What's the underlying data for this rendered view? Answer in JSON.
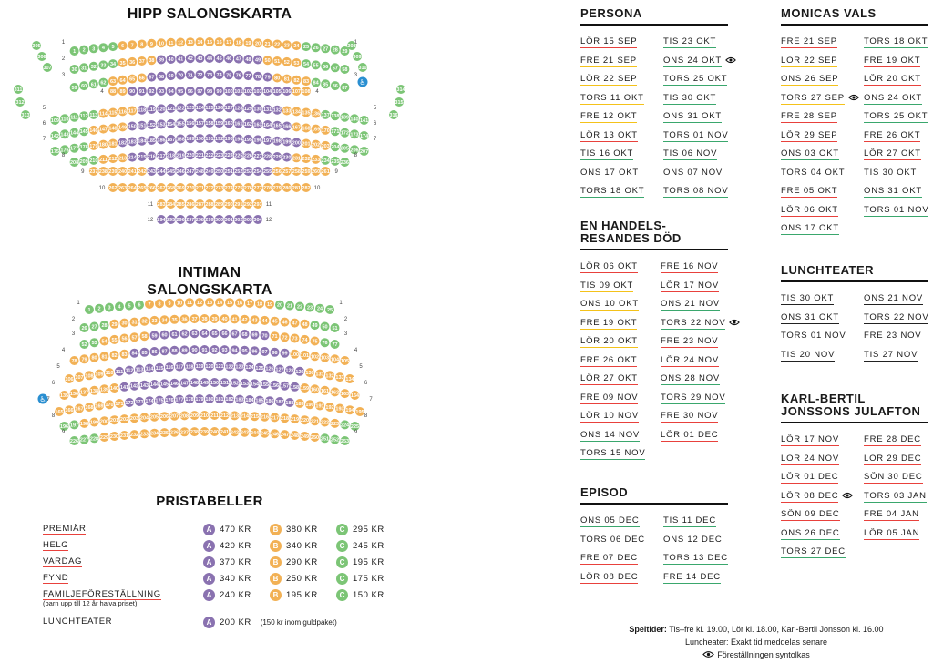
{
  "colors": {
    "green": "#7cc576",
    "orange": "#f2b155",
    "purple": "#8a72b0",
    "wheelchair": "#2a8fd1",
    "underline": {
      "red": "#e8413c",
      "yellow": "#f4c21a",
      "green": "#3aa76d"
    }
  },
  "hipp": {
    "title": "HIPP SALONGSKARTA",
    "row_labels": [
      "1",
      "2",
      "3",
      "4",
      "5",
      "6",
      "7",
      "8",
      "9",
      "10",
      "11",
      "12",
      "13"
    ],
    "wheelchair_icon": "wheelchair-icon"
  },
  "intiman": {
    "title_line1": "INTIMAN",
    "title_line2": "SALONGSKARTA",
    "row_labels": [
      "1",
      "2",
      "3",
      "4",
      "5",
      "6",
      "7",
      "8",
      "9"
    ],
    "wheelchair_icon": "wheelchair-icon"
  },
  "prices": {
    "title": "PRISTABELLER",
    "rows": [
      {
        "label": "PREMIÄR",
        "a": "470 KR",
        "b": "380 KR",
        "c": "295 KR"
      },
      {
        "label": "HELG",
        "a": "420 KR",
        "b": "340 KR",
        "c": "245 KR"
      },
      {
        "label": "VARDAG",
        "a": "370 KR",
        "b": "290 KR",
        "c": "195 KR"
      },
      {
        "label": "FYND",
        "a": "340 KR",
        "b": "250 KR",
        "c": "175 KR"
      },
      {
        "label": "FAMILJEFÖRESTÄLLNING",
        "sub": "(barn upp till 12 år halva priset)",
        "a": "240 KR",
        "b": "195 KR",
        "c": "150 KR"
      },
      {
        "label": "LUNCHTEATER",
        "a": "200 KR",
        "note": "(150 kr inom guldpaket)"
      }
    ],
    "badges": {
      "a": "A",
      "b": "B",
      "c": "C"
    }
  },
  "shows": {
    "persona": {
      "title": [
        "PERSONA"
      ],
      "col1": [
        [
          "LÖR 15 SEP",
          "r"
        ],
        [
          "FRE 21 SEP",
          "y"
        ],
        [
          "LÖR 22 SEP",
          "y"
        ],
        [
          "TORS 11 OKT",
          "y"
        ],
        [
          "FRE 12 OKT",
          "y"
        ],
        [
          "LÖR 13 OKT",
          "r"
        ],
        [
          "TIS 16 OKT",
          "g"
        ],
        [
          "ONS 17 OKT",
          "g"
        ],
        [
          "TORS 18 OKT",
          "g"
        ]
      ],
      "col2": [
        [
          "TIS 23 OKT",
          "g"
        ],
        [
          "ONS 24 OKT",
          "g",
          1
        ],
        [
          "TORS 25 OKT",
          "g"
        ],
        [
          "TIS 30 OKT",
          "g"
        ],
        [
          "ONS 31 OKT",
          "g"
        ],
        [
          "TORS 01 NOV",
          "g"
        ],
        [
          "TIS 06 NOV",
          "g"
        ],
        [
          "ONS 07 NOV",
          "g"
        ],
        [
          "TORS 08 NOV",
          "g"
        ]
      ]
    },
    "monicas": {
      "title": [
        "MONICAS VALS"
      ],
      "col1": [
        [
          "FRE 21 SEP",
          "r"
        ],
        [
          "LÖR 22 SEP",
          "y"
        ],
        [
          "ONS 26 SEP",
          "y"
        ],
        [
          "TORS 27 SEP",
          "y",
          1
        ],
        [
          "FRE 28 SEP",
          "r"
        ],
        [
          "LÖR 29 SEP",
          "r"
        ],
        [
          "ONS 03 OKT",
          "g"
        ],
        [
          "TORS 04 OKT",
          "g"
        ],
        [
          "FRE 05 OKT",
          "r"
        ],
        [
          "LÖR 06 OKT",
          "r"
        ],
        [
          "ONS 17 OKT",
          "g"
        ]
      ],
      "col2": [
        [
          "TORS 18 OKT",
          "g"
        ],
        [
          "FRE 19 OKT",
          "r"
        ],
        [
          "LÖR 20 OKT",
          "r"
        ],
        [
          "ONS 24 OKT",
          "g"
        ],
        [
          "TORS 25 OKT",
          "g"
        ],
        [
          "FRE 26 OKT",
          "r"
        ],
        [
          "LÖR 27 OKT",
          "r"
        ],
        [
          "TIS 30 OKT",
          "g"
        ],
        [
          "ONS 31 OKT",
          "g"
        ],
        [
          "TORS 01 NOV",
          "g"
        ]
      ]
    },
    "handels": {
      "title": [
        "EN HANDELS-",
        "RESANDES DÖD"
      ],
      "col1": [
        [
          "LÖR 06 OKT",
          "r"
        ],
        [
          "TIS 09 OKT",
          "y"
        ],
        [
          "ONS 10 OKT",
          "y"
        ],
        [
          "FRE 19 OKT",
          "y"
        ],
        [
          "LÖR 20 OKT",
          "y"
        ],
        [
          "FRE 26 OKT",
          "r"
        ],
        [
          "LÖR 27 OKT",
          "r"
        ],
        [
          "FRE 09 NOV",
          "r"
        ],
        [
          "LÖR 10 NOV",
          "r"
        ],
        [
          "ONS 14 NOV",
          "g"
        ],
        [
          "TORS 15 NOV",
          "g"
        ]
      ],
      "col2": [
        [
          "FRE 16 NOV",
          "r"
        ],
        [
          "LÖR 17 NOV",
          "r"
        ],
        [
          "ONS 21 NOV",
          "g"
        ],
        [
          "TORS 22 NOV",
          "g",
          1
        ],
        [
          "FRE 23 NOV",
          "r"
        ],
        [
          "LÖR 24 NOV",
          "r"
        ],
        [
          "ONS 28 NOV",
          "g"
        ],
        [
          "TORS 29 NOV",
          "g"
        ],
        [
          "FRE 30 NOV",
          "r"
        ],
        [
          "LÖR 01 DEC",
          "r"
        ]
      ]
    },
    "lunch": {
      "title": [
        "LUNCHTEATER"
      ],
      "col1": [
        [
          "TIS 30 OKT",
          "k"
        ],
        [
          "ONS 31 OKT",
          "k"
        ],
        [
          "TORS 01 NOV",
          "k"
        ],
        [
          "TIS 20 NOV",
          "k"
        ]
      ],
      "col2": [
        [
          "ONS 21 NOV",
          "k"
        ],
        [
          "TORS 22 NOV",
          "k"
        ],
        [
          "FRE 23 NOV",
          "k"
        ],
        [
          "TIS 27 NOV",
          "k"
        ]
      ]
    },
    "episod": {
      "title": [
        "EPISOD"
      ],
      "col1": [
        [
          "ONS 05 DEC",
          "g"
        ],
        [
          "TORS 06 DEC",
          "g"
        ],
        [
          "FRE 07 DEC",
          "r"
        ],
        [
          "LÖR 08 DEC",
          "r"
        ]
      ],
      "col2": [
        [
          "TIS 11 DEC",
          "g"
        ],
        [
          "ONS 12 DEC",
          "g"
        ],
        [
          "TORS 13 DEC",
          "g"
        ],
        [
          "FRE 14 DEC",
          "g"
        ]
      ]
    },
    "karlbertil": {
      "title": [
        "KARL-BERTIL",
        "JONSSONS JULAFTON"
      ],
      "col1": [
        [
          "LÖR 17 NOV",
          "r"
        ],
        [
          "LÖR 24 NOV",
          "r"
        ],
        [
          "LÖR 01 DEC",
          "r"
        ],
        [
          "LÖR 08 DEC",
          "r",
          1
        ],
        [
          "SÖN 09 DEC",
          "r"
        ],
        [
          "ONS 26 DEC",
          "g"
        ],
        [
          "TORS 27 DEC",
          "g"
        ]
      ],
      "col2": [
        [
          "FRE 28 DEC",
          "r"
        ],
        [
          "LÖR 29 DEC",
          "r"
        ],
        [
          "SÖN 30 DEC",
          "r"
        ],
        [
          "TORS 03 JAN",
          "g"
        ],
        [
          "FRE 04 JAN",
          "r"
        ],
        [
          "LÖR 05 JAN",
          "r"
        ]
      ]
    }
  },
  "footer": {
    "speltider_label": "Speltider:",
    "speltider": "Tis–fre kl. 19.00, Lör kl. 18.00, Karl-Bertil Jonsson kl. 16.00",
    "lunch": "Luncheater: Exakt tid meddelas senare",
    "syntolkas": "Föreställningen syntolkas"
  }
}
